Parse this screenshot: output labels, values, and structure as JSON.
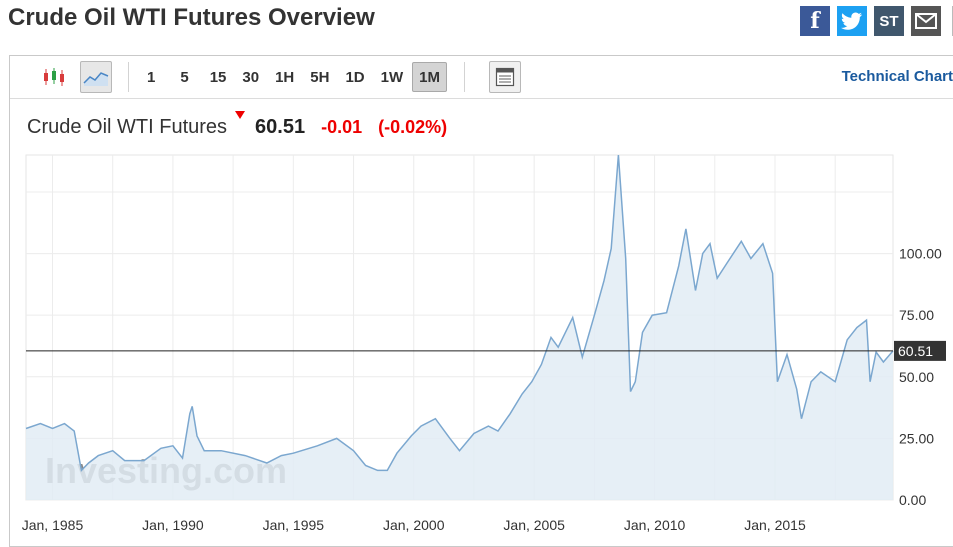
{
  "page": {
    "title": "Crude Oil WTI Futures Overview"
  },
  "share": [
    {
      "name": "facebook-icon",
      "glyph": "f",
      "color": "#3b5998"
    },
    {
      "name": "twitter-icon",
      "glyph": "t",
      "color": "#1da1f2"
    },
    {
      "name": "stocktwits-icon",
      "glyph": "ST",
      "color": "#40576d"
    },
    {
      "name": "email-icon",
      "glyph": "✉",
      "color": "#555555"
    }
  ],
  "toolbar": {
    "intervals": [
      "1",
      "5",
      "15",
      "30",
      "1H",
      "5H",
      "1D",
      "1W",
      "1M"
    ],
    "active_interval": "1M",
    "technical_chart_label": "Technical Chart"
  },
  "quote": {
    "name": "Crude Oil WTI Futures",
    "last": "60.51",
    "change": "-0.01",
    "change_pct": "(-0.02%)",
    "direction": "down"
  },
  "colors": {
    "line": "#7ba7cf",
    "area": "#e2ecf5",
    "down": "#e00000",
    "brand": "#4a4a4a"
  },
  "chart_data": {
    "type": "area",
    "ylim": [
      0,
      140
    ],
    "xlim": [
      1983.9,
      2019.9
    ],
    "yticks": [
      "0.00",
      "25.00",
      "50.00",
      "75.00",
      "100.00"
    ],
    "ytick_values": [
      0,
      25,
      50,
      75,
      100
    ],
    "xticks": [
      "Jan, 1985",
      "Jan, 1990",
      "Jan, 1995",
      "Jan, 2000",
      "Jan, 2005",
      "Jan, 2010",
      "Jan, 2015"
    ],
    "xtick_values": [
      1985,
      1990,
      1995,
      2000,
      2005,
      2010,
      2015
    ],
    "last_price_line": 60.51,
    "last_price_label": "60.51",
    "watermark": "Investing.com",
    "series": [
      {
        "x": [
          1983.9,
          1984.5,
          1985.0,
          1985.5,
          1985.9,
          1986.2,
          1986.5,
          1986.9,
          1987.5,
          1988.0,
          1988.8,
          1989.5,
          1990.0,
          1990.4,
          1990.7,
          1990.8,
          1991.0,
          1991.3,
          1992.0,
          1993.0,
          1993.9,
          1994.5,
          1995.0,
          1996.0,
          1996.8,
          1997.5,
          1998.0,
          1998.5,
          1998.9,
          1999.3,
          1999.9,
          2000.3,
          2000.9,
          2001.5,
          2001.9,
          2002.5,
          2003.1,
          2003.5,
          2004.0,
          2004.5,
          2004.9,
          2005.3,
          2005.7,
          2006.0,
          2006.6,
          2007.0,
          2007.5,
          2007.9,
          2008.2,
          2008.5,
          2008.8,
          2009.0,
          2009.2,
          2009.5,
          2009.9,
          2010.5,
          2011.0,
          2011.3,
          2011.7,
          2012.0,
          2012.3,
          2012.6,
          2013.0,
          2013.6,
          2014.0,
          2014.5,
          2014.9,
          2015.1,
          2015.5,
          2015.9,
          2016.1,
          2016.5,
          2016.9,
          2017.5,
          2018.0,
          2018.4,
          2018.8,
          2018.95,
          2019.2,
          2019.5,
          2019.9
        ],
        "y": [
          29,
          31,
          29,
          31,
          28,
          12,
          15,
          18,
          20,
          16,
          16,
          21,
          22,
          17,
          35,
          38,
          26,
          20,
          20,
          18,
          15,
          18,
          19,
          22,
          25,
          20,
          14,
          12,
          12,
          19,
          26,
          30,
          33,
          25,
          20,
          27,
          30,
          28,
          35,
          43,
          48,
          55,
          66,
          62,
          74,
          58,
          75,
          89,
          102,
          140,
          98,
          44,
          48,
          68,
          75,
          76,
          95,
          110,
          85,
          100,
          104,
          90,
          96,
          105,
          98,
          104,
          92,
          48,
          59,
          45,
          33,
          48,
          52,
          48,
          65,
          70,
          73,
          48,
          60,
          56,
          60.51
        ]
      }
    ]
  }
}
